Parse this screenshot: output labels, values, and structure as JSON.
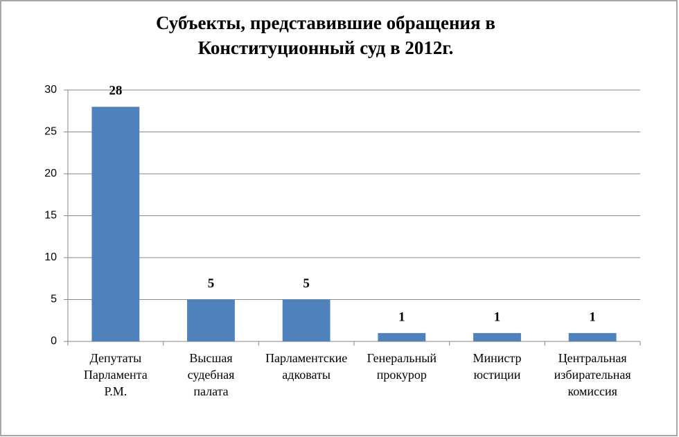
{
  "chart_data": {
    "type": "bar",
    "title": [
      "Субъекты, представившие обращения в",
      "Конституционный суд в  2012г."
    ],
    "categories": [
      "Депутаты Парламента Р.М.",
      "Высшая судебная палата",
      "Парламентские адковаты",
      "Генеральный прокурор",
      "Министр юстиции",
      "Центральная избирательная комиссия"
    ],
    "values": [
      28,
      5,
      5,
      1,
      1,
      1
    ],
    "color": "#4f81bd",
    "ylim": [
      0,
      30
    ],
    "yticks": [
      0,
      5,
      10,
      15,
      20,
      25,
      30
    ],
    "grid": true
  }
}
